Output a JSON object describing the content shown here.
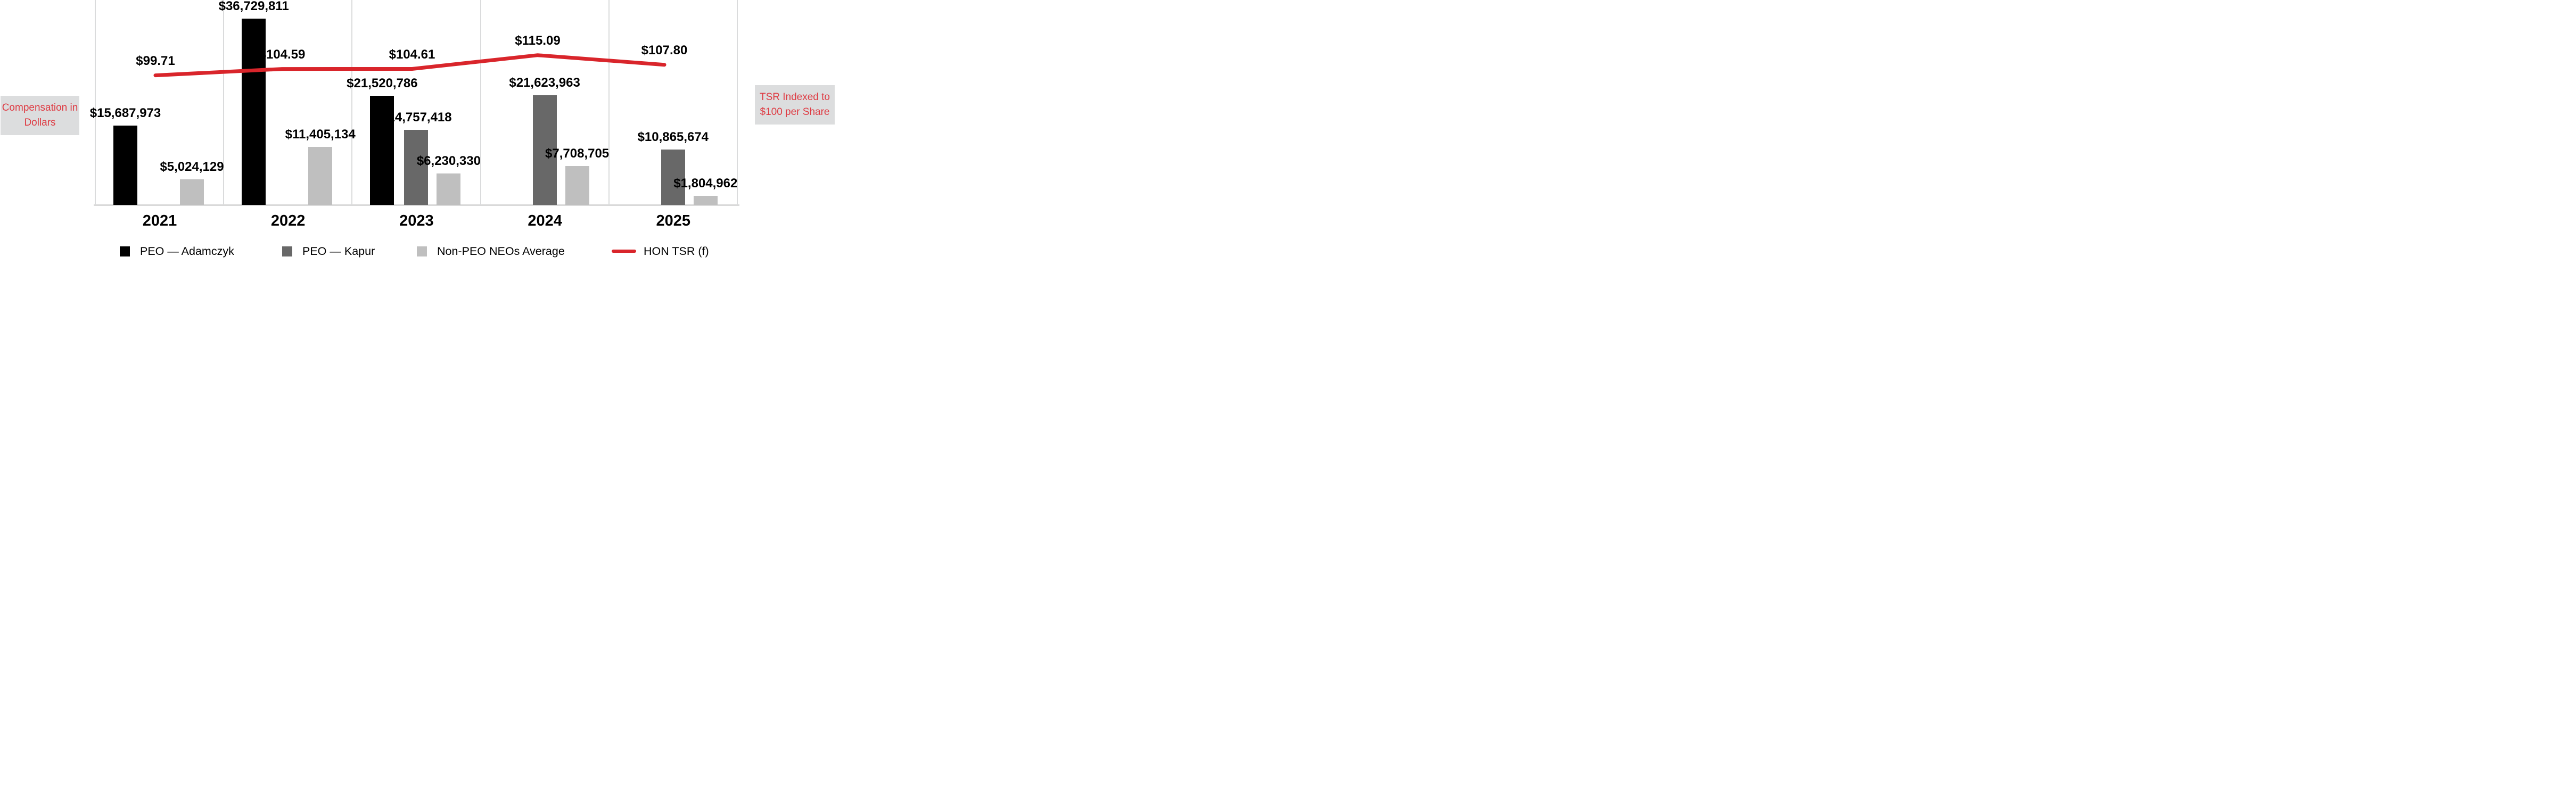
{
  "chart_data": {
    "type": "bar+line combo",
    "categories": [
      "2021",
      "2022",
      "2023",
      "2024",
      "2025"
    ],
    "series": [
      {
        "name": "PEO — Adamczyk",
        "slug": "peo-adamczyk",
        "color": "#000000",
        "values": [
          15687973,
          36729811,
          21520786,
          null,
          null
        ],
        "value_labels": [
          "$15,687,973",
          "$36,729,811",
          "$21,520,786",
          null,
          null
        ]
      },
      {
        "name": "PEO — Kapur",
        "slug": "peo-kapur",
        "color": "#686868",
        "values": [
          null,
          null,
          14757418,
          21623963,
          10865674
        ],
        "value_labels": [
          null,
          null,
          "$14,757,418",
          "$21,623,963",
          "$10,865,674"
        ]
      },
      {
        "name": "Non-PEO NEOs Average",
        "slug": "non-peo-neos-average",
        "color": "#BFBFBF",
        "values": [
          5024129,
          11405134,
          6230330,
          7708705,
          1804962
        ],
        "value_labels": [
          "$5,024,129",
          "$11,405,134",
          "$6,230,330",
          "$7,708,705",
          "$1,804,962"
        ]
      }
    ],
    "line_series": {
      "name": "HON TSR (f)",
      "slug": "hon-tsr",
      "color": "#D9252B",
      "values": [
        99.71,
        104.59,
        104.61,
        115.09,
        107.8
      ],
      "value_labels": [
        "$99.71",
        "$104.59",
        "$104.61",
        "$115.09",
        "$107.80"
      ]
    },
    "left_axis_note_lines": [
      "Compensation in",
      "Dollars"
    ],
    "right_axis_note_lines": [
      "TSR Indexed to",
      "$100 per Share"
    ],
    "grid": "vertical-only",
    "legend_position": "bottom"
  },
  "legend": {
    "items": [
      {
        "label": "PEO — Adamczyk",
        "swatch": "black-square"
      },
      {
        "label": "PEO — Kapur",
        "swatch": "dark-gray-square"
      },
      {
        "label": "Non-PEO NEOs Average",
        "swatch": "light-gray-square"
      },
      {
        "label": "HON TSR (f)",
        "swatch": "red-line"
      }
    ]
  },
  "colors": {
    "peo_adamczyk": "#000000",
    "peo_kapur": "#686868",
    "non_peo_neos": "#BFBFBF",
    "tsr_line": "#D9252B",
    "note_box_bg": "#DCDDDE",
    "note_text": "#DE3B43",
    "gridline": "#DADBDC"
  }
}
